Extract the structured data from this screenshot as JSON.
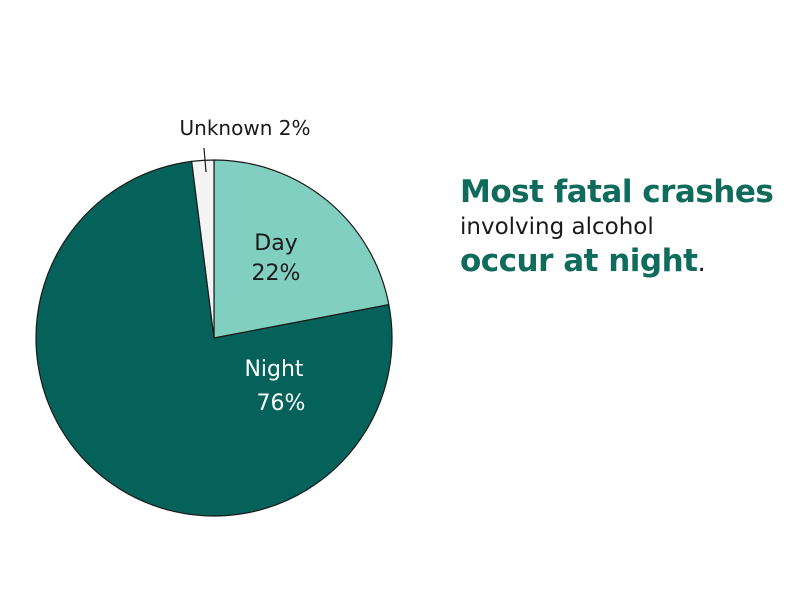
{
  "chart_data": {
    "type": "pie",
    "slices": [
      {
        "label": "Day",
        "value": 22,
        "value_label": "22%",
        "color": "#80cfc0"
      },
      {
        "label": "Night",
        "value": 76,
        "value_label": "76%",
        "color": "#05625a"
      },
      {
        "label": "Unknown",
        "value": 2,
        "value_label": "Unknown 2%",
        "color": "#f4f4f4"
      }
    ],
    "start_angle": "12 o'clock",
    "direction": "clockwise"
  },
  "headline": {
    "line1": "Most fatal crashes",
    "line2": "involving alcohol",
    "line3": "occur at night",
    "punctuation": "."
  }
}
